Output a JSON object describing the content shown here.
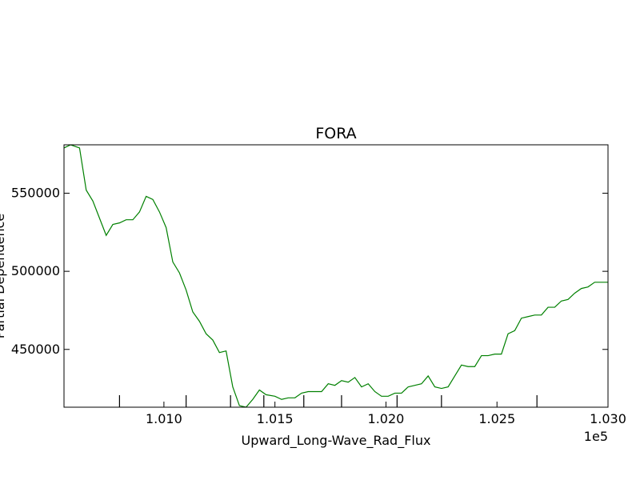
{
  "chart_data": {
    "type": "line",
    "title": "FORA",
    "xlabel": "Upward_Long-Wave_Rad_Flux",
    "ylabel": "Partial Dependence",
    "x_offset_label": "1e5",
    "xlim": [
      1.0055,
      1.03
    ],
    "ylim": [
      413000,
      581000
    ],
    "xticks": [
      {
        "value": 1.01,
        "label": "1.010"
      },
      {
        "value": 1.015,
        "label": "1.015"
      },
      {
        "value": 1.02,
        "label": "1.020"
      },
      {
        "value": 1.025,
        "label": "1.025"
      },
      {
        "value": 1.03,
        "label": "1.030"
      }
    ],
    "yticks": [
      {
        "value": 450000,
        "label": "450000"
      },
      {
        "value": 500000,
        "label": "500000"
      },
      {
        "value": 550000,
        "label": "550000"
      }
    ],
    "rug": [
      1.008,
      1.011,
      1.013,
      1.0145,
      1.0163,
      1.018,
      1.0205,
      1.0225,
      1.0268
    ],
    "grid": false,
    "series": [
      {
        "color": "#008000",
        "x": [
          1.0055,
          1.0058,
          1.0062,
          1.0065,
          1.0068,
          1.0071,
          1.0074,
          1.0077,
          1.008,
          1.0083,
          1.0086,
          1.0089,
          1.0092,
          1.0095,
          1.0098,
          1.0101,
          1.0104,
          1.0107,
          1.011,
          1.0113,
          1.0116,
          1.0119,
          1.0122,
          1.0125,
          1.0128,
          1.0131,
          1.0134,
          1.0137,
          1.014,
          1.0143,
          1.0146,
          1.015,
          1.0153,
          1.0156,
          1.0159,
          1.0162,
          1.0165,
          1.0168,
          1.0171,
          1.0174,
          1.0177,
          1.018,
          1.0183,
          1.0186,
          1.0189,
          1.0192,
          1.0195,
          1.0198,
          1.0201,
          1.0204,
          1.0207,
          1.021,
          1.0213,
          1.0216,
          1.0219,
          1.0222,
          1.0225,
          1.0228,
          1.0231,
          1.0234,
          1.0237,
          1.024,
          1.0243,
          1.0246,
          1.0249,
          1.0252,
          1.0255,
          1.0258,
          1.0261,
          1.0264,
          1.0267,
          1.027,
          1.0273,
          1.0276,
          1.0279,
          1.0282,
          1.0285,
          1.0288,
          1.0291,
          1.0294,
          1.0297,
          1.03
        ],
        "y": [
          579000,
          581000,
          579000,
          552000,
          545000,
          534000,
          523000,
          530000,
          531000,
          533000,
          533000,
          538000,
          548000,
          546000,
          538000,
          528000,
          506000,
          499000,
          488000,
          474000,
          468000,
          460000,
          456000,
          448000,
          449000,
          426000,
          414000,
          413000,
          418000,
          424000,
          421000,
          420000,
          418000,
          419000,
          419000,
          422000,
          423000,
          423000,
          423000,
          428000,
          427000,
          430000,
          429000,
          432000,
          426000,
          428000,
          423000,
          420000,
          420000,
          422000,
          422000,
          426000,
          427000,
          428000,
          433000,
          426000,
          425000,
          426000,
          433000,
          440000,
          439000,
          439000,
          446000,
          446000,
          447000,
          447000,
          460000,
          462000,
          470000,
          471000,
          472000,
          472000,
          477000,
          477000,
          481000,
          482000,
          486000,
          489000,
          490000,
          493000,
          493000,
          493000
        ]
      }
    ]
  }
}
